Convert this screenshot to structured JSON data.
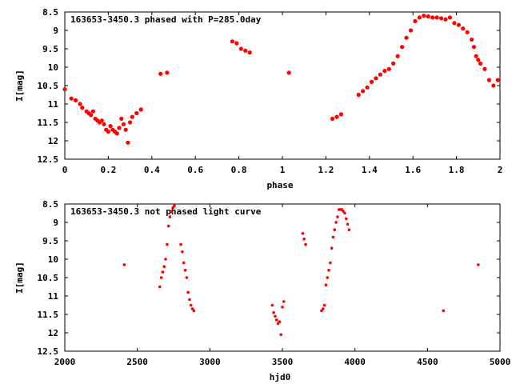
{
  "chart_data": [
    {
      "type": "scatter",
      "title": "163653-3450.3 phased with P=285.0day",
      "xlabel": "phase",
      "ylabel": "I[mag]",
      "xlim": [
        0,
        2
      ],
      "ylim": [
        12.5,
        8.5
      ],
      "y_inverted": true,
      "x_ticks": [
        "0",
        "0.2",
        "0.4",
        "0.6",
        "0.8",
        "1",
        "1.2",
        "1.4",
        "1.6",
        "1.8",
        "2"
      ],
      "y_ticks": [
        "8.5",
        "9",
        "9.5",
        "10",
        "10.5",
        "11",
        "11.5",
        "12",
        "12.5"
      ],
      "grid": false,
      "marker_color": "#ff0000",
      "x": [
        0.0,
        0.03,
        0.05,
        0.07,
        0.08,
        0.1,
        0.11,
        0.12,
        0.13,
        0.14,
        0.15,
        0.16,
        0.17,
        0.18,
        0.19,
        0.2,
        0.21,
        0.22,
        0.23,
        0.24,
        0.25,
        0.26,
        0.27,
        0.28,
        0.29,
        0.3,
        0.31,
        0.33,
        0.35,
        0.44,
        0.47,
        0.77,
        0.79,
        0.81,
        0.83,
        0.85,
        1.03,
        1.23,
        1.25,
        1.27,
        1.35,
        1.37,
        1.39,
        1.41,
        1.43,
        1.45,
        1.47,
        1.49,
        1.51,
        1.53,
        1.55,
        1.57,
        1.59,
        1.61,
        1.63,
        1.65,
        1.67,
        1.69,
        1.71,
        1.73,
        1.75,
        1.77,
        1.79,
        1.81,
        1.83,
        1.85,
        1.87,
        1.88,
        1.89,
        1.9,
        1.91,
        1.93,
        1.95,
        1.97,
        1.99
      ],
      "y": [
        10.6,
        10.85,
        10.9,
        11.0,
        11.1,
        11.2,
        11.25,
        11.3,
        11.2,
        11.4,
        11.45,
        11.5,
        11.45,
        11.55,
        11.7,
        11.75,
        11.6,
        11.7,
        11.75,
        11.8,
        11.65,
        11.4,
        11.55,
        11.7,
        12.05,
        11.5,
        11.35,
        11.25,
        11.15,
        10.18,
        10.15,
        9.3,
        9.35,
        9.5,
        9.55,
        9.6,
        10.15,
        11.4,
        11.35,
        11.28,
        10.75,
        10.65,
        10.55,
        10.4,
        10.3,
        10.2,
        10.1,
        10.05,
        9.9,
        9.7,
        9.45,
        9.2,
        9.0,
        8.75,
        8.65,
        8.6,
        8.62,
        8.65,
        8.65,
        8.67,
        8.7,
        8.65,
        8.8,
        8.85,
        8.95,
        9.05,
        9.25,
        9.45,
        9.7,
        9.8,
        9.9,
        10.05,
        10.35,
        10.5,
        10.35
      ]
    },
    {
      "type": "scatter",
      "title": "163653-3450.3 not phased light curve",
      "xlabel": "hjd0",
      "ylabel": "I[mag]",
      "xlim": [
        2000,
        5000
      ],
      "ylim": [
        12.5,
        8.5
      ],
      "y_inverted": true,
      "x_ticks": [
        "2000",
        "2500",
        "3000",
        "3500",
        "4000",
        "4500",
        "5000"
      ],
      "y_ticks": [
        "8.5",
        "9",
        "9.5",
        "10",
        "10.5",
        "11",
        "11.5",
        "12",
        "12.5"
      ],
      "grid": false,
      "marker_color": "#ff0000",
      "x": [
        2410,
        2655,
        2665,
        2675,
        2685,
        2695,
        2705,
        2715,
        2725,
        2735,
        2745,
        2755,
        2800,
        2810,
        2820,
        2830,
        2840,
        2850,
        2860,
        2870,
        2880,
        2890,
        3430,
        3440,
        3450,
        3460,
        3470,
        3480,
        3490,
        3500,
        3510,
        3640,
        3650,
        3660,
        3770,
        3780,
        3790,
        3800,
        3810,
        3820,
        3830,
        3840,
        3850,
        3860,
        3870,
        3880,
        3890,
        3900,
        3910,
        3920,
        3930,
        3940,
        3950,
        3960,
        4610,
        4850
      ],
      "y": [
        10.15,
        10.75,
        10.5,
        10.35,
        10.2,
        10.0,
        9.6,
        9.1,
        8.85,
        8.7,
        8.6,
        8.55,
        9.6,
        9.8,
        10.1,
        10.3,
        10.5,
        10.9,
        11.1,
        11.25,
        11.35,
        11.4,
        11.25,
        11.45,
        11.55,
        11.65,
        11.75,
        11.7,
        12.05,
        11.3,
        11.15,
        9.3,
        9.45,
        9.6,
        11.4,
        11.35,
        11.25,
        10.7,
        10.5,
        10.3,
        10.1,
        9.7,
        9.4,
        9.2,
        9.0,
        8.85,
        8.65,
        8.65,
        8.65,
        8.7,
        8.75,
        8.9,
        9.05,
        9.2,
        11.4,
        10.15
      ]
    }
  ]
}
